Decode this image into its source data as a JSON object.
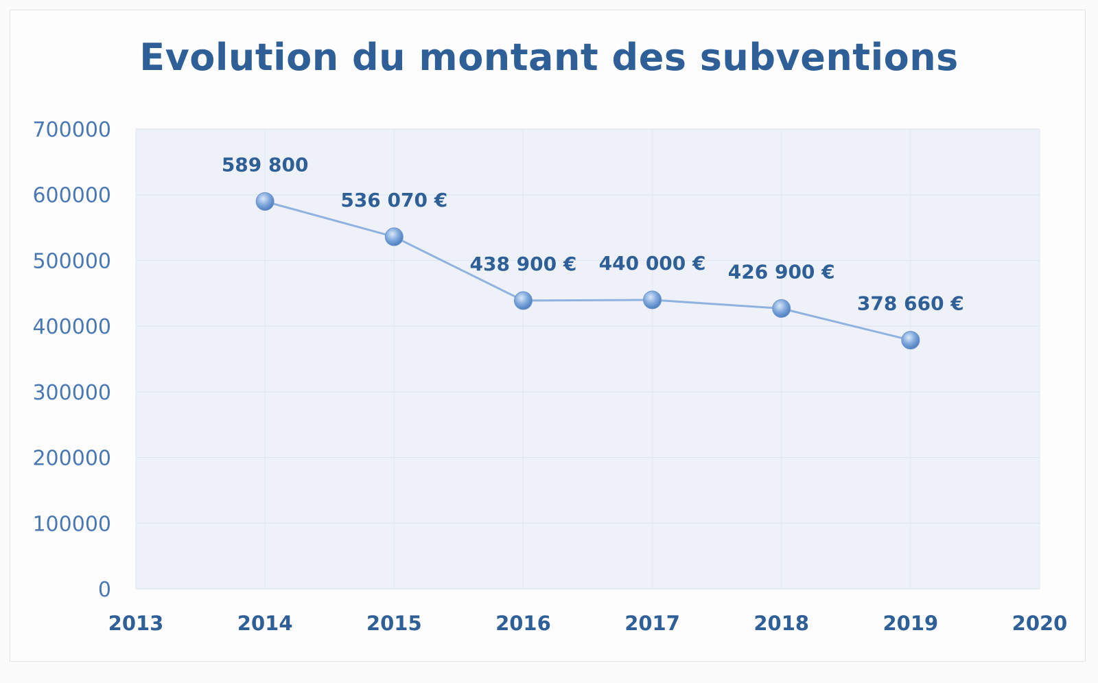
{
  "chart_data": {
    "type": "line",
    "title": "Evolution du montant des subventions",
    "xlabel": "",
    "ylabel": "",
    "x": [
      2014,
      2015,
      2016,
      2017,
      2018,
      2019
    ],
    "series": [
      {
        "values": [
          589800,
          536070,
          438900,
          440000,
          426900,
          378660
        ],
        "data_labels": [
          "589 800",
          "536 070 €",
          "438 900 €",
          "440 000 €",
          "426 900 €",
          "378 660 €"
        ]
      }
    ],
    "xlim": [
      2013,
      2020
    ],
    "ylim": [
      0,
      700000
    ],
    "x_ticks": [
      "2013",
      "2014",
      "2015",
      "2016",
      "2017",
      "2018",
      "2019",
      "2020"
    ],
    "y_ticks": [
      "0",
      "100000",
      "200000",
      "300000",
      "400000",
      "500000",
      "600000",
      "700000"
    ],
    "grid": true,
    "legend": "none",
    "colors": {
      "line": "#8fb2df",
      "marker": "#6f9ad4",
      "title": "#2f5f97",
      "axis_text": "#4a78b2",
      "plot_background": "#eef2f8"
    }
  }
}
